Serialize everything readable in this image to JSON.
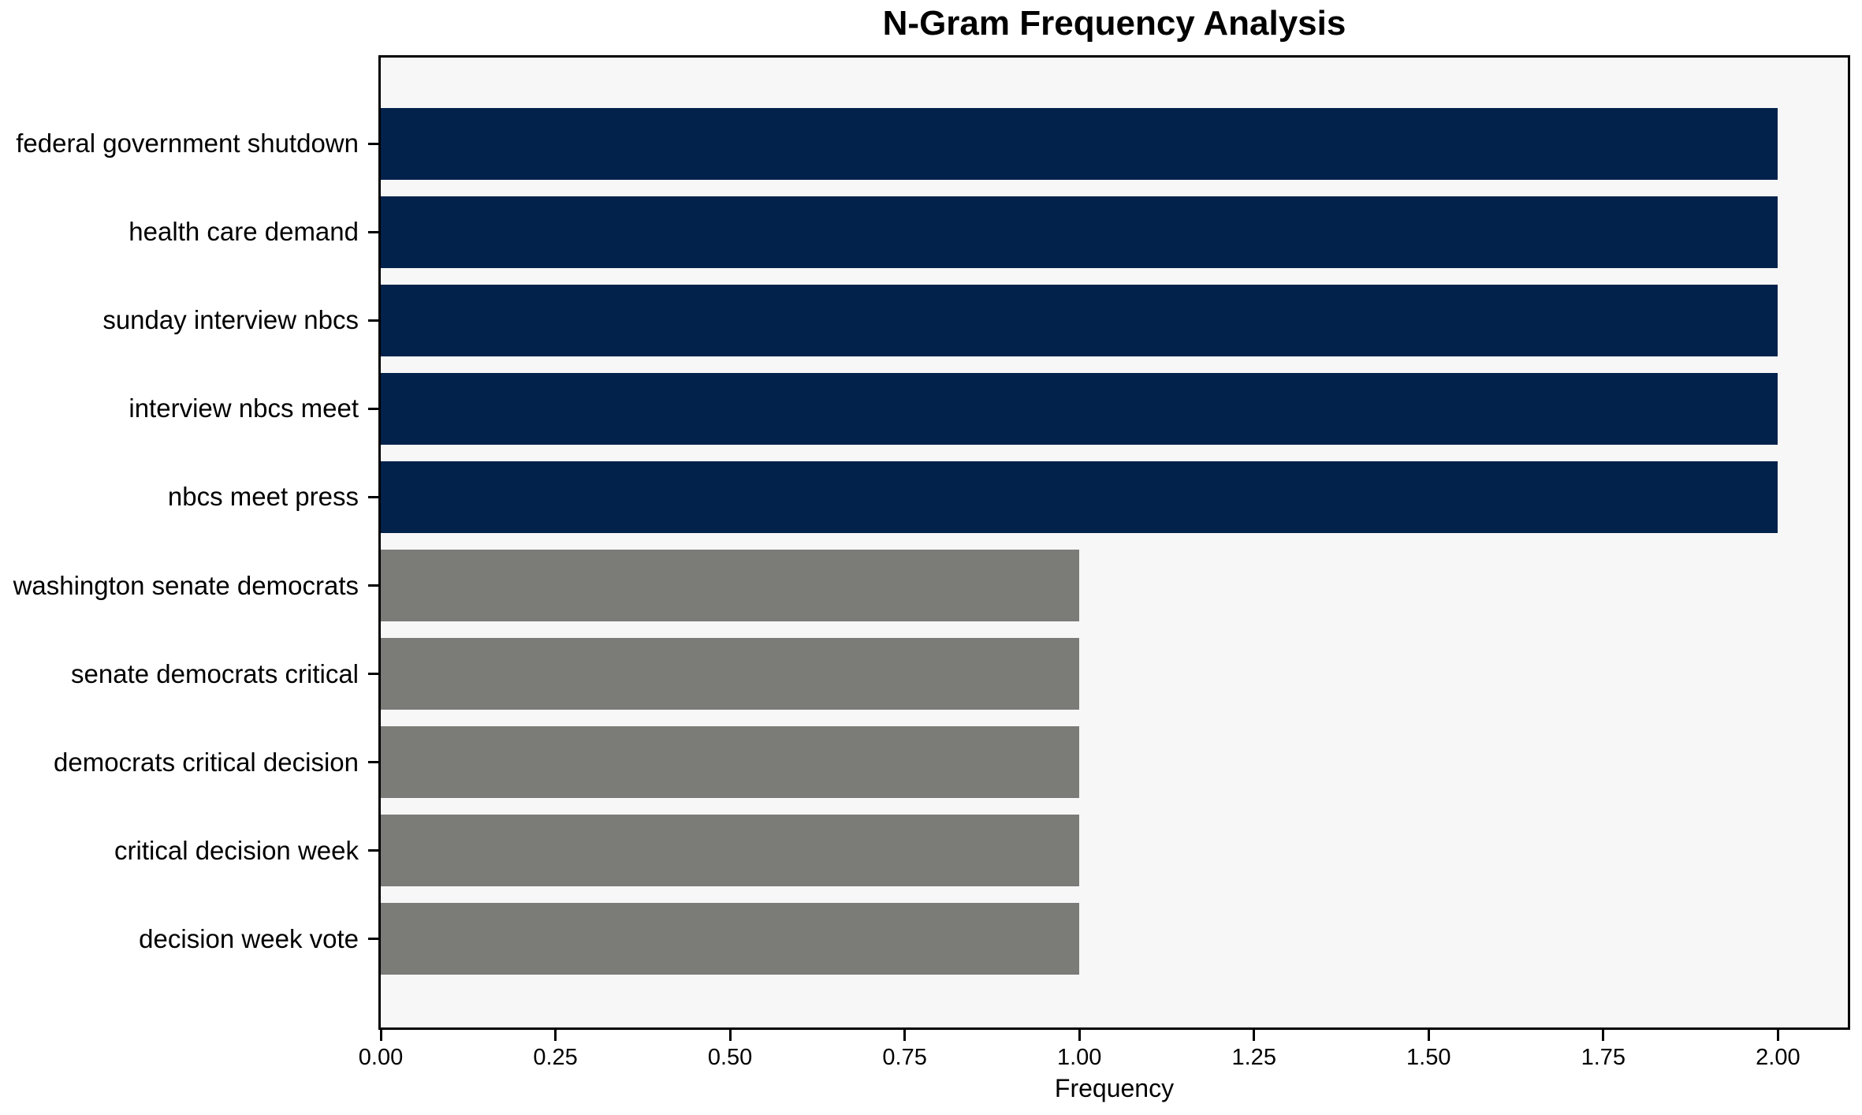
{
  "chart_data": {
    "type": "bar",
    "orientation": "horizontal",
    "title": "N-Gram Frequency Analysis",
    "xlabel": "Frequency",
    "ylabel": "",
    "categories": [
      "federal government shutdown",
      "health care demand",
      "sunday interview nbcs",
      "interview nbcs meet",
      "nbcs meet press",
      "washington senate democrats",
      "senate democrats critical",
      "democrats critical decision",
      "critical decision week",
      "decision week vote"
    ],
    "values": [
      2,
      2,
      2,
      2,
      2,
      1,
      1,
      1,
      1,
      1
    ],
    "bar_colors": [
      "#03224b",
      "#03224b",
      "#03224b",
      "#03224b",
      "#03224b",
      "#7b7b78",
      "#7b7b78",
      "#7b7b78",
      "#7b7b78",
      "#7b7b78"
    ],
    "xlim": [
      0,
      2.1
    ],
    "xticks": [
      0,
      0.25,
      0.5,
      0.75,
      1.0,
      1.25,
      1.5,
      1.75,
      2.0
    ],
    "xtick_labels": [
      "0.00",
      "0.25",
      "0.50",
      "0.75",
      "1.00",
      "1.25",
      "1.50",
      "1.75",
      "2.00"
    ],
    "grid": false,
    "legend": false,
    "colors": {
      "high_frequency_bar": "#03224b",
      "low_frequency_bar": "#7b7b78",
      "plot_background": "#f7f7f7",
      "figure_background": "#ffffff",
      "spine": "#000000",
      "text": "#000000"
    }
  }
}
